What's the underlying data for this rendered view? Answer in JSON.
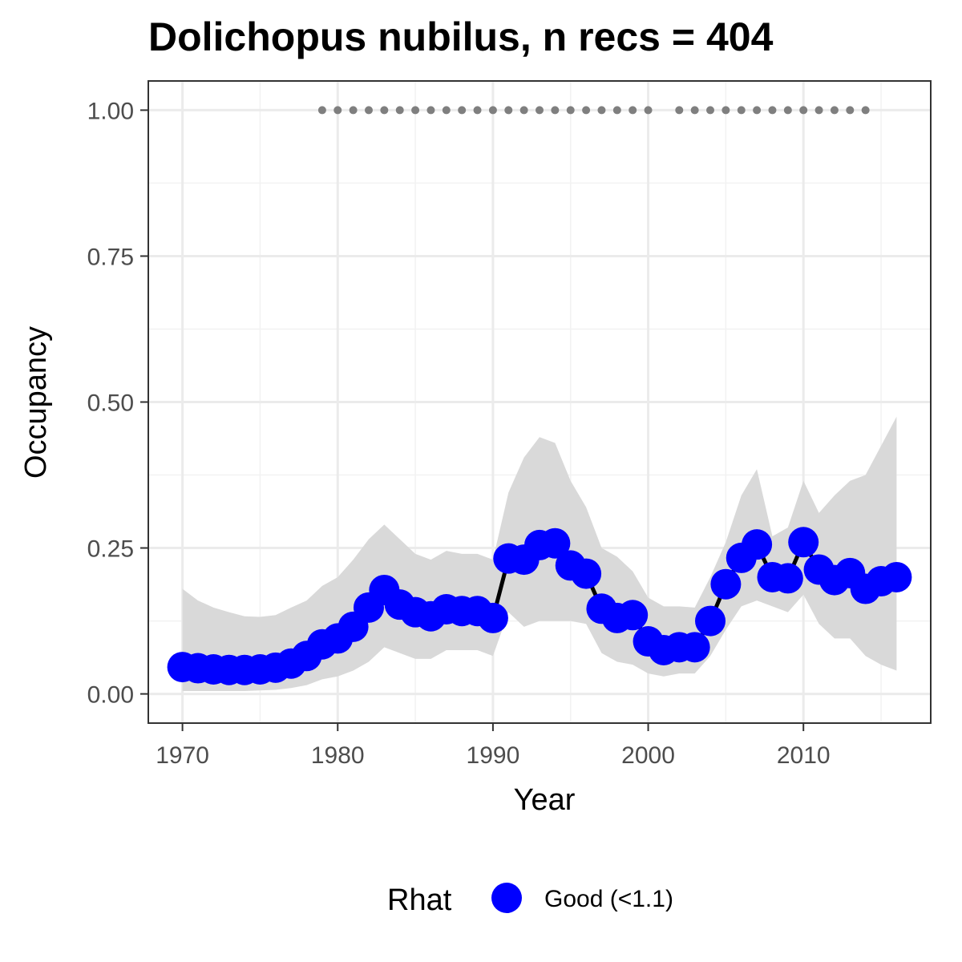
{
  "chart_data": {
    "type": "line",
    "title": "Dolichopus nubilus, n recs = 404",
    "xlabel": "Year",
    "ylabel": "Occupancy",
    "xlim": [
      1967.8,
      2018.2
    ],
    "ylim": [
      -0.05,
      1.05
    ],
    "x_ticks": [
      1970,
      1980,
      1990,
      2000,
      2010
    ],
    "x_tick_labels": [
      "1970",
      "1980",
      "1990",
      "2000",
      "2010"
    ],
    "y_ticks": [
      0,
      0.25,
      0.5,
      0.75,
      1.0
    ],
    "y_tick_labels": [
      "0.00",
      "0.25",
      "0.50",
      "0.75",
      "1.00"
    ],
    "grid": true,
    "legend": {
      "position": "bottom",
      "title": "Rhat",
      "entries": [
        {
          "label": "Good (<1.1)",
          "color": "#0000ff"
        }
      ]
    },
    "colors": {
      "point": "#0000ff",
      "line": "#000000",
      "ribbon": "#d9d9d9",
      "record_marks": "#7f7f7f"
    },
    "series": [
      {
        "x": [
          1970,
          1971,
          1972,
          1973,
          1974,
          1975,
          1976,
          1977,
          1978,
          1979,
          1980,
          1981,
          1982,
          1983,
          1984,
          1985,
          1986,
          1987,
          1988,
          1989,
          1990,
          1991,
          1992,
          1993,
          1994,
          1995,
          1996,
          1997,
          1998,
          1999,
          2000,
          2001,
          2002,
          2003,
          2004,
          2005,
          2006,
          2007,
          2008,
          2009,
          2010,
          2011,
          2012,
          2013,
          2014,
          2015,
          2016
        ],
        "y": [
          0.046,
          0.044,
          0.042,
          0.041,
          0.041,
          0.042,
          0.045,
          0.052,
          0.065,
          0.085,
          0.095,
          0.115,
          0.148,
          0.178,
          0.153,
          0.14,
          0.133,
          0.145,
          0.142,
          0.142,
          0.13,
          0.232,
          0.23,
          0.255,
          0.258,
          0.22,
          0.206,
          0.146,
          0.13,
          0.135,
          0.09,
          0.075,
          0.08,
          0.08,
          0.125,
          0.188,
          0.233,
          0.256,
          0.2,
          0.198,
          0.26,
          0.213,
          0.195,
          0.207,
          0.18,
          0.193,
          0.2
        ],
        "lower": [
          0.005,
          0.005,
          0.005,
          0.005,
          0.005,
          0.006,
          0.007,
          0.01,
          0.015,
          0.025,
          0.03,
          0.04,
          0.055,
          0.08,
          0.07,
          0.06,
          0.06,
          0.075,
          0.075,
          0.075,
          0.065,
          0.14,
          0.115,
          0.125,
          0.125,
          0.125,
          0.12,
          0.07,
          0.055,
          0.05,
          0.035,
          0.03,
          0.035,
          0.035,
          0.065,
          0.11,
          0.15,
          0.16,
          0.15,
          0.14,
          0.17,
          0.12,
          0.095,
          0.095,
          0.065,
          0.05,
          0.04
        ],
        "upper": [
          0.18,
          0.16,
          0.148,
          0.14,
          0.133,
          0.132,
          0.135,
          0.148,
          0.16,
          0.185,
          0.2,
          0.23,
          0.265,
          0.29,
          0.265,
          0.24,
          0.23,
          0.245,
          0.24,
          0.24,
          0.23,
          0.345,
          0.405,
          0.44,
          0.43,
          0.365,
          0.32,
          0.25,
          0.235,
          0.21,
          0.165,
          0.15,
          0.15,
          0.148,
          0.2,
          0.26,
          0.34,
          0.385,
          0.27,
          0.285,
          0.365,
          0.31,
          0.34,
          0.365,
          0.375,
          0.425,
          0.475
        ]
      }
    ],
    "record_years": [
      1979,
      1980,
      1981,
      1982,
      1983,
      1984,
      1985,
      1986,
      1987,
      1988,
      1989,
      1990,
      1991,
      1992,
      1993,
      1994,
      1995,
      1996,
      1997,
      1998,
      1999,
      2000,
      2002,
      2003,
      2004,
      2005,
      2006,
      2007,
      2008,
      2009,
      2010,
      2011,
      2012,
      2013,
      2014
    ],
    "record_level": 1.0
  }
}
